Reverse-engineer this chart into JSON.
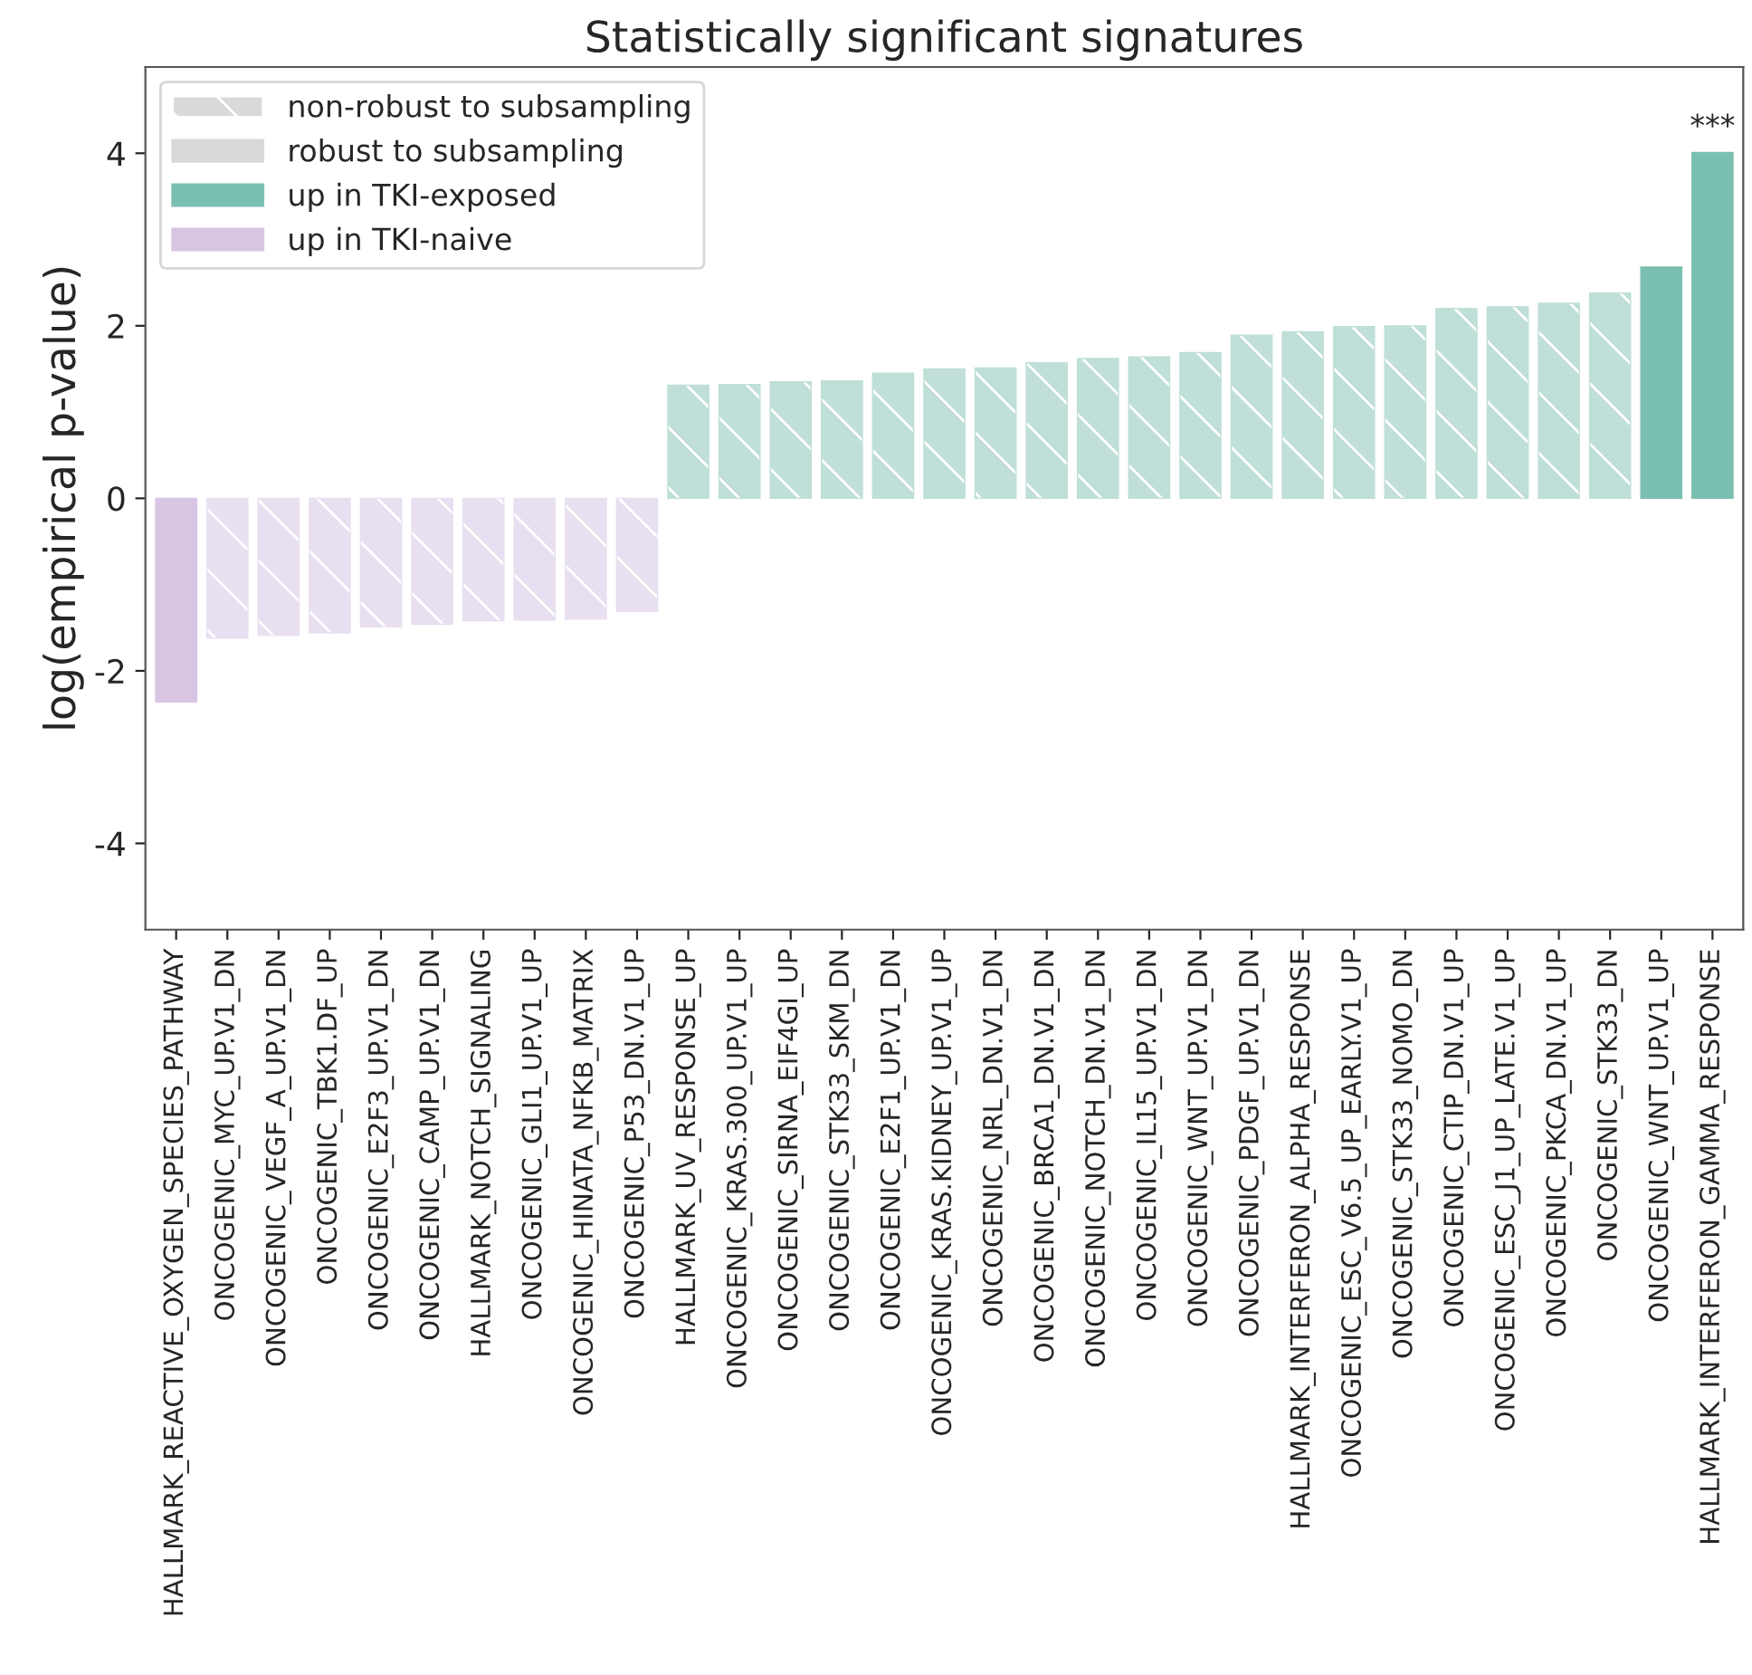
{
  "chart_data": {
    "type": "bar",
    "title": "Statistically significant signatures",
    "ylabel": "log(empirical p-value)",
    "categories": [
      "HALLMARK_REACTIVE_OXYGEN_SPECIES_PATHWAY",
      "ONCOGENIC_MYC_UP.V1_DN",
      "ONCOGENIC_VEGF_A_UP.V1_DN",
      "ONCOGENIC_TBK1.DF_UP",
      "ONCOGENIC_E2F3_UP.V1_DN",
      "ONCOGENIC_CAMP_UP.V1_DN",
      "HALLMARK_NOTCH_SIGNALING",
      "ONCOGENIC_GLI1_UP.V1_UP",
      "ONCOGENIC_HINATA_NFKB_MATRIX",
      "ONCOGENIC_P53_DN.V1_UP",
      "HALLMARK_UV_RESPONSE_UP",
      "ONCOGENIC_KRAS.300_UP.V1_UP",
      "ONCOGENIC_SIRNA_EIF4GI_UP",
      "ONCOGENIC_STK33_SKM_DN",
      "ONCOGENIC_E2F1_UP.V1_DN",
      "ONCOGENIC_KRAS.KIDNEY_UP.V1_UP",
      "ONCOGENIC_NRL_DN.V1_DN",
      "ONCOGENIC_BRCA1_DN.V1_DN",
      "ONCOGENIC_NOTCH_DN.V1_DN",
      "ONCOGENIC_IL15_UP.V1_DN",
      "ONCOGENIC_WNT_UP.V1_DN",
      "ONCOGENIC_PDGF_UP.V1_DN",
      "HALLMARK_INTERFERON_ALPHA_RESPONSE",
      "ONCOGENIC_ESC_V6.5_UP_EARLY.V1_UP",
      "ONCOGENIC_STK33_NOMO_DN",
      "ONCOGENIC_CTIP_DN.V1_UP",
      "ONCOGENIC_ESC_J1_UP_LATE.V1_UP",
      "ONCOGENIC_PKCA_DN.V1_UP",
      "ONCOGENIC_STK33_DN",
      "ONCOGENIC_WNT_UP.V1_UP",
      "HALLMARK_INTERFERON_GAMMA_RESPONSE"
    ],
    "series": [
      {
        "name": "up in TKI-exposed",
        "color": "#7bbfb1",
        "values": [
          null,
          null,
          null,
          null,
          null,
          null,
          null,
          null,
          null,
          null,
          1.31,
          1.32,
          1.35,
          1.36,
          1.45,
          1.5,
          1.51,
          1.57,
          1.62,
          1.64,
          1.69,
          1.89,
          1.93,
          1.99,
          2.0,
          2.2,
          2.22,
          2.26,
          2.38,
          2.68,
          4.01
        ],
        "colors": [
          null,
          null,
          null,
          null,
          null,
          null,
          null,
          null,
          null,
          null,
          "#bfdfd8",
          "#bfdfd8",
          "#bfdfd8",
          "#bfdfd8",
          "#bfdfd8",
          "#bfdfd8",
          "#bfdfd8",
          "#bfdfd8",
          "#bfdfd8",
          "#bfdfd8",
          "#bfdfd8",
          "#bfdfd8",
          "#bfdfd8",
          "#bfdfd8",
          "#bfdfd8",
          "#bfdfd8",
          "#bfdfd8",
          "#bfdfd8",
          "#bfdfd8",
          "#7bbfb1",
          "#7bbfb1"
        ]
      },
      {
        "name": "up in TKI-naive",
        "color": "#d8c5e3",
        "values": [
          -2.36,
          -1.62,
          -1.59,
          -1.56,
          -1.49,
          -1.46,
          -1.42,
          -1.41,
          -1.4,
          -1.31,
          null,
          null,
          null,
          null,
          null,
          null,
          null,
          null,
          null,
          null,
          null,
          null,
          null,
          null,
          null,
          null,
          null,
          null,
          null,
          null,
          null
        ],
        "colors": [
          "#d8c5e3",
          "#e8dff0",
          "#e8dff0",
          "#e8dff0",
          "#e8dff0",
          "#e8dff0",
          "#e8dff0",
          "#e8dff0",
          "#e8dff0",
          "#e8dff0",
          null,
          null,
          null,
          null,
          null,
          null,
          null,
          null,
          null,
          null,
          null,
          null,
          null,
          null,
          null,
          null,
          null,
          null,
          null,
          null,
          null
        ]
      }
    ],
    "annotations": [
      "non-robust to subsampling",
      "robust to subsampling",
      {
        "text": "***",
        "x": "HALLMARK_INTERFERON_GAMMA_RESPONSE",
        "y": 4.01
      }
    ],
    "ylim": [
      -5,
      5
    ],
    "yticks": [
      -4,
      -2,
      0,
      2,
      4
    ],
    "grid": false,
    "legend": "top left"
  }
}
